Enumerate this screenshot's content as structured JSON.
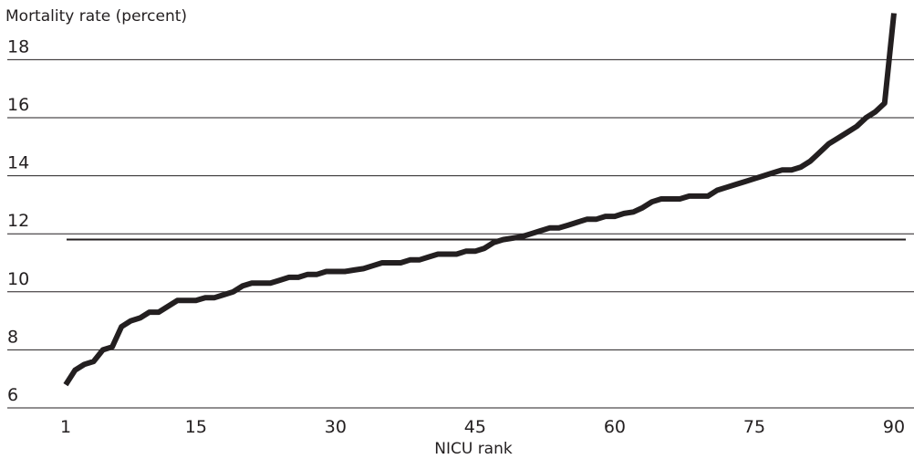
{
  "chart_data": {
    "type": "line",
    "ylabel": "Mortality rate (percent)",
    "xlabel": "NICU rank",
    "x_ticks": [
      1,
      15,
      30,
      45,
      60,
      75,
      90
    ],
    "y_ticks": [
      6,
      8,
      10,
      12,
      14,
      16,
      18
    ],
    "xlim": [
      1,
      90
    ],
    "ylim": [
      6,
      19
    ],
    "grid": "horizontal",
    "reference_line": {
      "y": 11.8
    },
    "series": [
      {
        "x": [
          1,
          2,
          3,
          4,
          5,
          6,
          7,
          8,
          9,
          10,
          11,
          12,
          13,
          14,
          15,
          16,
          17,
          18,
          19,
          20,
          21,
          22,
          23,
          24,
          25,
          26,
          27,
          28,
          29,
          30,
          31,
          32,
          33,
          34,
          35,
          36,
          37,
          38,
          39,
          40,
          41,
          42,
          43,
          44,
          45,
          46,
          47,
          48,
          49,
          50,
          51,
          52,
          53,
          54,
          55,
          56,
          57,
          58,
          59,
          60,
          61,
          62,
          63,
          64,
          65,
          66,
          67,
          68,
          69,
          70,
          71,
          72,
          73,
          74,
          75,
          76,
          77,
          78,
          79,
          80,
          81,
          82,
          83,
          84,
          85,
          86,
          87,
          88,
          89,
          90
        ],
        "values": [
          6.8,
          7.3,
          7.5,
          7.6,
          8.0,
          8.1,
          8.8,
          9.0,
          9.1,
          9.3,
          9.3,
          9.5,
          9.7,
          9.7,
          9.7,
          9.8,
          9.8,
          9.9,
          10.0,
          10.2,
          10.3,
          10.3,
          10.3,
          10.4,
          10.5,
          10.5,
          10.6,
          10.6,
          10.7,
          10.7,
          10.7,
          10.75,
          10.8,
          10.9,
          11.0,
          11.0,
          11.0,
          11.1,
          11.1,
          11.2,
          11.3,
          11.3,
          11.3,
          11.4,
          11.4,
          11.5,
          11.7,
          11.8,
          11.85,
          11.9,
          12.0,
          12.1,
          12.2,
          12.2,
          12.3,
          12.4,
          12.5,
          12.5,
          12.6,
          12.6,
          12.7,
          12.75,
          12.9,
          13.1,
          13.2,
          13.2,
          13.2,
          13.3,
          13.3,
          13.3,
          13.5,
          13.6,
          13.7,
          13.8,
          13.9,
          14.0,
          14.1,
          14.2,
          14.2,
          14.3,
          14.5,
          14.8,
          15.1,
          15.3,
          15.5,
          15.7,
          16.0,
          16.2,
          16.5,
          19.6
        ]
      }
    ]
  }
}
